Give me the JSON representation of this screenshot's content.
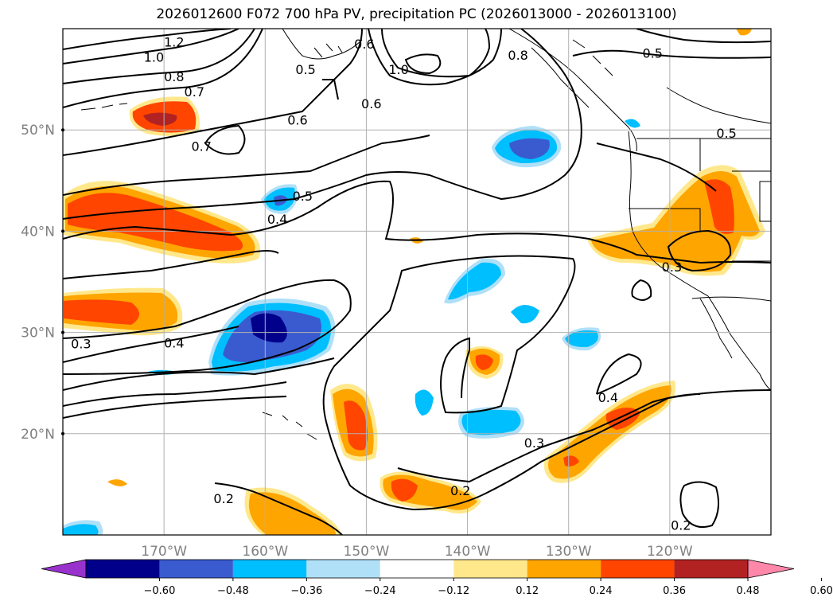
{
  "chart_data": {
    "type": "heatmap",
    "title": "2026012600 F072 700 hPa PV, precipitation PC (2026013000 - 2026013100)",
    "xlabel": "",
    "ylabel": "",
    "x_range": [
      -180,
      -110
    ],
    "y_range": [
      10,
      60
    ],
    "grid": true,
    "lon_ticks": [
      {
        "value": -170,
        "label": "170°W"
      },
      {
        "value": -160,
        "label": "160°W"
      },
      {
        "value": -150,
        "label": "150°W"
      },
      {
        "value": -140,
        "label": "140°W"
      },
      {
        "value": -130,
        "label": "130°W"
      },
      {
        "value": -120,
        "label": "120°W"
      }
    ],
    "lat_ticks": [
      {
        "value": 20,
        "label": "20°N"
      },
      {
        "value": 30,
        "label": "30°N"
      },
      {
        "value": 40,
        "label": "40°N"
      },
      {
        "value": 50,
        "label": "50°N"
      }
    ],
    "colorbar": {
      "placement": "bottom",
      "extend": "both",
      "bounds": [
        -0.6,
        -0.48,
        -0.36,
        -0.24,
        -0.12,
        0.12,
        0.24,
        0.36,
        0.48,
        0.6
      ],
      "labels": [
        "−0.60",
        "−0.48",
        "−0.36",
        "−0.24",
        "−0.12",
        "0.12",
        "0.24",
        "0.36",
        "0.48",
        "0.60"
      ],
      "colors": [
        "#9932cc",
        "#00008b",
        "#3a5bd0",
        "#00bfff",
        "#b0e0f8",
        "#ffffff",
        "#ffe88c",
        "#ffa500",
        "#ff4500",
        "#b22222",
        "#ff88aa"
      ]
    },
    "contour_labels": [
      {
        "text": "1.2",
        "lon": -169.0,
        "lat": 58.7
      },
      {
        "text": "1.0",
        "lon": -171.0,
        "lat": 57.2
      },
      {
        "text": "0.8",
        "lon": -169.0,
        "lat": 55.3
      },
      {
        "text": "0.7",
        "lon": -167.0,
        "lat": 53.8
      },
      {
        "text": "0.7",
        "lon": -166.3,
        "lat": 48.4
      },
      {
        "text": "0.6",
        "lon": -156.8,
        "lat": 51.0
      },
      {
        "text": "0.5",
        "lon": -156.0,
        "lat": 56.0
      },
      {
        "text": "0.6",
        "lon": -150.2,
        "lat": 58.5
      },
      {
        "text": "1.0",
        "lon": -146.8,
        "lat": 56.0
      },
      {
        "text": "0.6",
        "lon": -149.5,
        "lat": 52.6
      },
      {
        "text": "0.8",
        "lon": -135.0,
        "lat": 57.4
      },
      {
        "text": "0.5",
        "lon": -121.7,
        "lat": 57.6
      },
      {
        "text": "0.5",
        "lon": -114.4,
        "lat": 49.7
      },
      {
        "text": "0.5",
        "lon": -156.3,
        "lat": 43.5
      },
      {
        "text": "0.4",
        "lon": -158.8,
        "lat": 41.2
      },
      {
        "text": "0.3",
        "lon": -178.2,
        "lat": 28.9
      },
      {
        "text": "0.4",
        "lon": -169.0,
        "lat": 29.0
      },
      {
        "text": "0.4",
        "lon": -126.1,
        "lat": 23.6
      },
      {
        "text": "0.3",
        "lon": -133.4,
        "lat": 19.1
      },
      {
        "text": "0.3",
        "lon": -119.8,
        "lat": 36.5
      },
      {
        "text": "0.2",
        "lon": -164.1,
        "lat": 13.6
      },
      {
        "text": "0.2",
        "lon": -140.7,
        "lat": 14.4
      },
      {
        "text": "0.2",
        "lon": -118.9,
        "lat": 11.0
      }
    ]
  }
}
